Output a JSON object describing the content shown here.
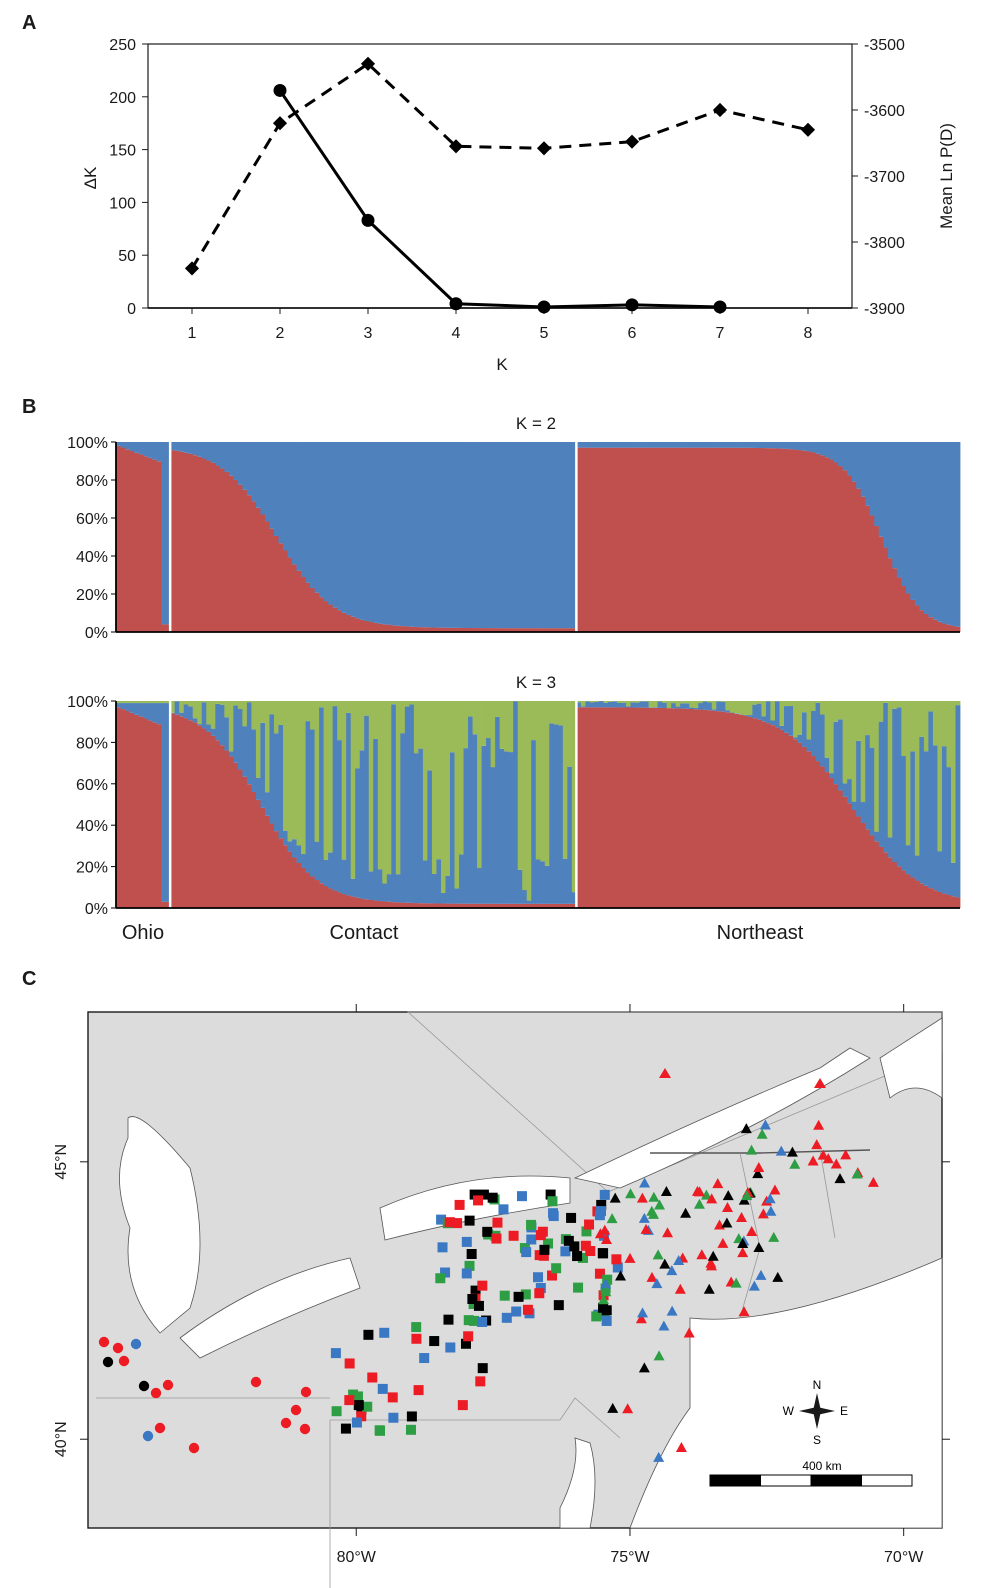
{
  "panels": {
    "a": "A",
    "b": "B",
    "c": "C"
  },
  "chart_data": [
    {
      "type": "line",
      "x": [
        1,
        2,
        3,
        4,
        5,
        6,
        7,
        8
      ],
      "xlabel": "K",
      "xticks": [
        "1",
        "2",
        "3",
        "4",
        "5",
        "6",
        "7",
        "8"
      ],
      "ylabel": "ΔK",
      "ylim": [
        0,
        250
      ],
      "yticks": [
        "0",
        "50",
        "100",
        "150",
        "200",
        "250"
      ],
      "y2label": "Mean Ln P(D)",
      "y2lim": [
        -3900,
        -3500
      ],
      "y2ticks": [
        "-3900",
        "-3800",
        "-3700",
        "-3600",
        "-3500"
      ],
      "series": [
        {
          "axis": "left",
          "style": "solid",
          "marker": "circle",
          "x": [
            2,
            3,
            4,
            5,
            6,
            7
          ],
          "values": [
            206,
            83,
            4,
            1,
            3,
            1
          ]
        },
        {
          "axis": "right",
          "style": "dashed",
          "marker": "diamond",
          "x": [
            1,
            2,
            3,
            4,
            5,
            6,
            7,
            8
          ],
          "values": [
            -3840,
            -3620,
            -3530,
            -3655,
            -3658,
            -3648,
            -3600,
            -3630
          ]
        }
      ]
    },
    {
      "type": "bar",
      "stacked": true,
      "title": "K = 2",
      "yticks": [
        "0%",
        "20%",
        "40%",
        "60%",
        "80%",
        "100%"
      ],
      "groups": [
        "Ohio",
        "Contact",
        "Northeast"
      ],
      "group_sizes": [
        12,
        90,
        85
      ],
      "colors": [
        "#c0504d",
        "#4f81bd"
      ],
      "description": "red ancestry fraction per individual, sorted descending within group"
    },
    {
      "type": "bar",
      "stacked": true,
      "title": "K = 3",
      "yticks": [
        "0%",
        "20%",
        "40%",
        "60%",
        "80%",
        "100%"
      ],
      "groups": [
        "Ohio",
        "Contact",
        "Northeast"
      ],
      "group_sizes": [
        12,
        90,
        85
      ],
      "colors": [
        "#c0504d",
        "#4f81bd",
        "#9bbb59"
      ]
    },
    {
      "type": "scatter",
      "xticks": [
        "80°W",
        "75°W",
        "70°W"
      ],
      "yticks": [
        "40°N",
        "45°N"
      ],
      "scale_label": "400 km",
      "compass": {
        "n": "N",
        "s": "S",
        "e": "E",
        "w": "W"
      },
      "xlim": [
        -84.9,
        -69.3
      ],
      "ylim": [
        38.4,
        47.7
      ],
      "marker_colors": {
        "red": "#ed1c24",
        "blue": "#3a78c3",
        "green": "#2e9e44",
        "black": "#000000"
      }
    }
  ]
}
